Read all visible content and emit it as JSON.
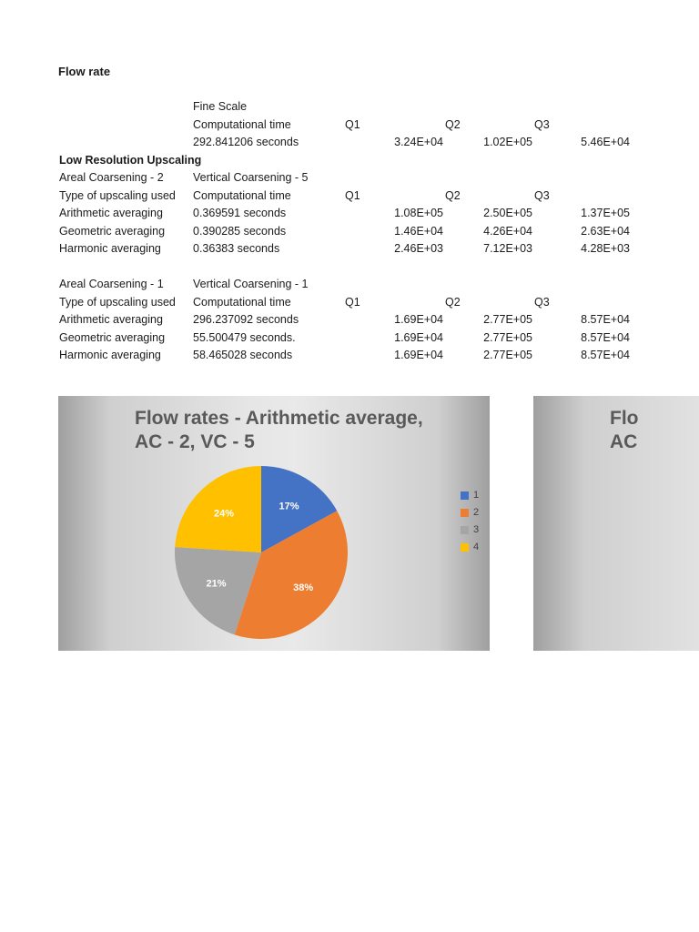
{
  "page": {
    "title": "Flow rate"
  },
  "table": {
    "columns": [
      "A",
      "B",
      "C",
      "D",
      "E"
    ],
    "rows": [
      [
        null,
        {
          "t": "Fine Scale"
        },
        null,
        null,
        null
      ],
      [
        null,
        {
          "t": "Computational time"
        },
        {
          "t": "Q1"
        },
        {
          "t": "Q2"
        },
        {
          "t": "Q3"
        }
      ],
      [
        null,
        {
          "t": "292.841206 seconds"
        },
        {
          "t": "3.24E+04",
          "a": "r"
        },
        {
          "t": "1.02E+05",
          "a": "r"
        },
        {
          "t": "5.46E+04",
          "a": "r"
        }
      ],
      [
        {
          "t": "Low Resolution Upscaling",
          "b": true
        },
        null,
        null,
        null,
        null
      ],
      [
        {
          "t": "Areal Coarsening - 2"
        },
        {
          "t": "Vertical Coarsening - 5"
        },
        null,
        null,
        null
      ],
      [
        {
          "t": "Type of upscaling used"
        },
        {
          "t": "Computational time"
        },
        {
          "t": "Q1"
        },
        {
          "t": "Q2"
        },
        {
          "t": "Q3"
        }
      ],
      [
        {
          "t": "Arithmetic averaging"
        },
        {
          "t": "0.369591 seconds"
        },
        {
          "t": "1.08E+05",
          "a": "r"
        },
        {
          "t": "2.50E+05",
          "a": "r"
        },
        {
          "t": "1.37E+05",
          "a": "r"
        }
      ],
      [
        {
          "t": "Geometric averaging"
        },
        {
          "t": "0.390285 seconds"
        },
        {
          "t": "1.46E+04",
          "a": "r"
        },
        {
          "t": "4.26E+04",
          "a": "r"
        },
        {
          "t": "2.63E+04",
          "a": "r"
        }
      ],
      [
        {
          "t": "Harmonic averaging"
        },
        {
          "t": "0.36383 seconds"
        },
        {
          "t": "2.46E+03",
          "a": "r"
        },
        {
          "t": "7.12E+03",
          "a": "r"
        },
        {
          "t": "4.28E+03",
          "a": "r"
        }
      ],
      [
        null,
        null,
        null,
        null,
        null
      ],
      [
        {
          "t": "Areal Coarsening - 1"
        },
        {
          "t": "Vertical Coarsening - 1"
        },
        null,
        null,
        null
      ],
      [
        {
          "t": "Type of upscaling used"
        },
        {
          "t": "Computational time"
        },
        {
          "t": "Q1"
        },
        {
          "t": "Q2"
        },
        {
          "t": "Q3"
        }
      ],
      [
        {
          "t": "Arithmetic averaging"
        },
        {
          "t": "296.237092 seconds"
        },
        {
          "t": "1.69E+04",
          "a": "r"
        },
        {
          "t": "2.77E+05",
          "a": "r"
        },
        {
          "t": "8.57E+04",
          "a": "r"
        }
      ],
      [
        {
          "t": "Geometric averaging"
        },
        {
          "t": "55.500479 seconds."
        },
        {
          "t": "1.69E+04",
          "a": "r"
        },
        {
          "t": "2.77E+05",
          "a": "r"
        },
        {
          "t": "8.57E+04",
          "a": "r"
        }
      ],
      [
        {
          "t": "Harmonic averaging"
        },
        {
          "t": "58.465028 seconds"
        },
        {
          "t": "1.69E+04",
          "a": "r"
        },
        {
          "t": "2.77E+05",
          "a": "r"
        },
        {
          "t": "8.57E+04",
          "a": "r"
        }
      ]
    ]
  },
  "chart_data": [
    {
      "type": "pie",
      "title": "Flow rates - Arithmetic average, AC - 2, VC - 5",
      "title_lines": [
        "Flow rates - Arithmetic average,",
        "AC - 2, VC - 5"
      ],
      "labels": [
        "1",
        "2",
        "3",
        "4"
      ],
      "values": [
        17,
        38,
        21,
        24
      ],
      "value_labels": [
        "17%",
        "38%",
        "21%",
        "24%"
      ],
      "colors": [
        "#4472C4",
        "#ED7D31",
        "#A5A5A5",
        "#FFC000"
      ],
      "legend_position": "right",
      "start_angle_deg": 0,
      "direction": "clockwise"
    },
    {
      "type": "pie",
      "title_lines": [
        "Flo",
        "AC"
      ],
      "clipped": true
    }
  ]
}
